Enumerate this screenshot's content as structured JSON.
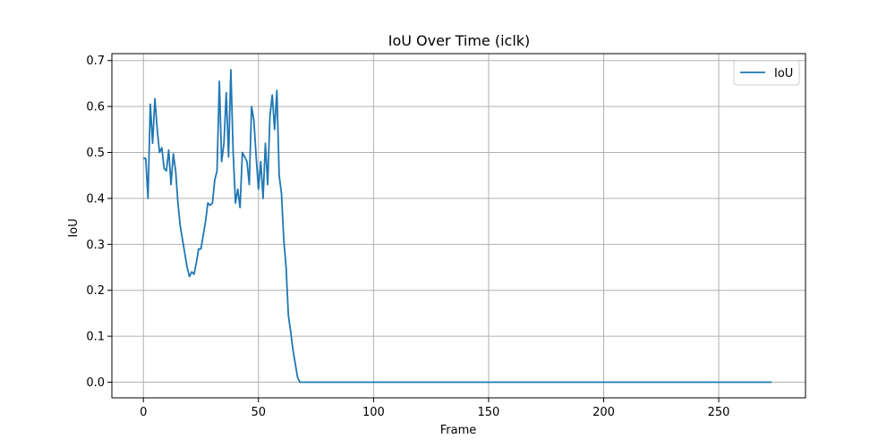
{
  "chart_data": {
    "type": "line",
    "title": "IoU Over Time (iclk)",
    "xlabel": "Frame",
    "ylabel": "IoU",
    "xlim": [
      -13.7,
      287.7
    ],
    "ylim": [
      -0.034,
      0.715
    ],
    "xticks": [
      0,
      50,
      100,
      150,
      200,
      250
    ],
    "yticks": [
      0.0,
      0.1,
      0.2,
      0.3,
      0.4,
      0.5,
      0.6,
      0.7
    ],
    "xtick_labels": [
      "0",
      "50",
      "100",
      "150",
      "200",
      "250"
    ],
    "ytick_labels": [
      "0.0",
      "0.1",
      "0.2",
      "0.3",
      "0.4",
      "0.5",
      "0.6",
      "0.7"
    ],
    "grid": true,
    "legend_position": "top-right",
    "series": [
      {
        "name": "IoU",
        "color": "#1f77b4",
        "x": [
          0,
          1,
          2,
          3,
          4,
          5,
          6,
          7,
          8,
          9,
          10,
          11,
          12,
          13,
          14,
          15,
          16,
          17,
          18,
          19,
          20,
          21,
          22,
          23,
          24,
          25,
          26,
          27,
          28,
          29,
          30,
          31,
          32,
          33,
          34,
          35,
          36,
          37,
          38,
          39,
          40,
          41,
          42,
          43,
          44,
          45,
          46,
          47,
          48,
          49,
          50,
          51,
          52,
          53,
          54,
          55,
          56,
          57,
          58,
          59,
          60,
          61,
          62,
          63,
          64,
          65,
          66,
          67,
          68,
          69,
          70,
          80,
          100,
          150,
          200,
          250,
          273
        ],
        "y": [
          0.487,
          0.487,
          0.4,
          0.605,
          0.52,
          0.617,
          0.55,
          0.5,
          0.51,
          0.465,
          0.46,
          0.505,
          0.43,
          0.497,
          0.46,
          0.39,
          0.34,
          0.31,
          0.28,
          0.25,
          0.23,
          0.24,
          0.235,
          0.26,
          0.29,
          0.29,
          0.32,
          0.35,
          0.39,
          0.385,
          0.39,
          0.44,
          0.46,
          0.655,
          0.48,
          0.52,
          0.63,
          0.49,
          0.68,
          0.5,
          0.39,
          0.42,
          0.38,
          0.5,
          0.49,
          0.48,
          0.43,
          0.6,
          0.57,
          0.49,
          0.42,
          0.48,
          0.4,
          0.52,
          0.43,
          0.58,
          0.625,
          0.55,
          0.635,
          0.45,
          0.41,
          0.31,
          0.25,
          0.145,
          0.11,
          0.07,
          0.04,
          0.01,
          0.0,
          0.0,
          0.0,
          0.0,
          0.0,
          0.0,
          0.0,
          0.0,
          0.0
        ]
      }
    ]
  }
}
